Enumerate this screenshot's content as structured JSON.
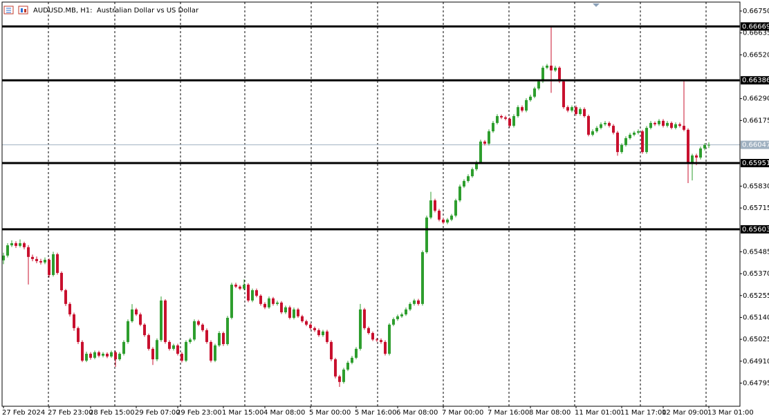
{
  "chart_data": {
    "type": "candlestick",
    "title": "AUDUSD.MB, H1:  Australian Dollar vs US Dollar",
    "up_color": "#2e9e2e",
    "down_color": "#c8102e",
    "ylim": [
      0.64666,
      0.66808
    ],
    "yticks": [
      {
        "value": 0.6675,
        "label": "0.66750"
      },
      {
        "value": 0.66635,
        "label": "0.66635"
      },
      {
        "value": 0.6652,
        "label": "0.66520"
      },
      {
        "value": 0.6629,
        "label": "0.66290"
      },
      {
        "value": 0.66175,
        "label": "0.66175"
      },
      {
        "value": 0.6583,
        "label": "0.65830"
      },
      {
        "value": 0.65715,
        "label": "0.65715"
      },
      {
        "value": 0.65485,
        "label": "0.65485"
      },
      {
        "value": 0.6537,
        "label": "0.65370"
      },
      {
        "value": 0.65255,
        "label": "0.65255"
      },
      {
        "value": 0.6514,
        "label": "0.65140"
      },
      {
        "value": 0.65025,
        "label": "0.65025"
      },
      {
        "value": 0.6491,
        "label": "0.64910"
      },
      {
        "value": 0.64795,
        "label": "0.64795"
      }
    ],
    "levels": [
      {
        "value": 0.66669,
        "label": "0.66669"
      },
      {
        "value": 0.66386,
        "label": "0.66386"
      },
      {
        "value": 0.65951,
        "label": "0.65951"
      },
      {
        "value": 0.65603,
        "label": "0.65603"
      }
    ],
    "current_price": {
      "value": 0.66047,
      "label": "0.66047"
    },
    "categories": [
      "27 Feb 2024",
      null,
      null,
      null,
      null,
      null,
      null,
      null,
      null,
      null,
      null,
      "27 Feb 23:00",
      null,
      null,
      null,
      null,
      null,
      null,
      null,
      null,
      null,
      "28 Feb 15:00",
      null,
      null,
      null,
      null,
      null,
      null,
      null,
      null,
      null,
      null,
      "29 Feb 07:00",
      null,
      null,
      null,
      null,
      null,
      null,
      null,
      null,
      null,
      "29 Feb 23:00",
      null,
      null,
      null,
      null,
      null,
      null,
      null,
      null,
      null,
      null,
      "1 Mar 15:00",
      null,
      null,
      null,
      null,
      null,
      null,
      null,
      null,
      null,
      "4 Mar 08:00",
      null,
      null,
      null,
      null,
      null,
      null,
      null,
      null,
      null,
      null,
      "5 Mar 00:00",
      null,
      null,
      null,
      null,
      null,
      null,
      null,
      null,
      null,
      null,
      "5 Mar 16:00",
      null,
      null,
      null,
      null,
      null,
      null,
      null,
      null,
      null,
      "6 Mar 08:00",
      null,
      null,
      null,
      null,
      null,
      null,
      null,
      null,
      null,
      null,
      "7 Mar 00:00",
      null,
      null,
      null,
      null,
      null,
      null,
      null,
      null,
      null,
      null,
      "7 Mar 16:00",
      null,
      null,
      null,
      null,
      null,
      null,
      null,
      null,
      null,
      "8 Mar 08:00",
      null,
      null,
      null,
      null,
      null,
      null,
      null,
      null,
      null,
      null,
      "11 Mar 01:00",
      null,
      null,
      null,
      null,
      null,
      null,
      null,
      null,
      null,
      null,
      "11 Mar 17:00",
      null,
      null,
      null,
      null,
      null,
      null,
      null,
      null,
      null,
      "12 Mar 09:00",
      null,
      null,
      null,
      null,
      null,
      null,
      null,
      null,
      null,
      null,
      "13 Mar 01:00"
    ],
    "ohlc": [
      [
        0.6544,
        0.6548,
        0.6542,
        0.65465
      ],
      [
        0.65465,
        0.6553,
        0.65455,
        0.65519
      ],
      [
        0.65519,
        0.65545,
        0.6551,
        0.6553
      ],
      [
        0.6553,
        0.6554,
        0.65505,
        0.65516
      ],
      [
        0.65516,
        0.6555,
        0.65508,
        0.6553
      ],
      [
        0.6553,
        0.65538,
        0.65498,
        0.65509
      ],
      [
        0.65509,
        0.6552,
        0.65313,
        0.65458
      ],
      [
        0.65458,
        0.6547,
        0.65435,
        0.65447
      ],
      [
        0.65447,
        0.6546,
        0.65425,
        0.65436
      ],
      [
        0.65436,
        0.65448,
        0.65418,
        0.65429
      ],
      [
        0.65429,
        0.65455,
        0.6542,
        0.65443
      ],
      [
        0.65443,
        0.6545,
        0.6535,
        0.65363
      ],
      [
        0.65363,
        0.65485,
        0.65355,
        0.65472
      ],
      [
        0.65472,
        0.6548,
        0.65365,
        0.65374
      ],
      [
        0.65374,
        0.65382,
        0.65275,
        0.65283
      ],
      [
        0.65283,
        0.6529,
        0.652,
        0.65211
      ],
      [
        0.65211,
        0.6522,
        0.65145,
        0.65156
      ],
      [
        0.65156,
        0.65165,
        0.6507,
        0.65084
      ],
      [
        0.65084,
        0.65092,
        0.65,
        0.65011
      ],
      [
        0.65011,
        0.6502,
        0.64905,
        0.64913
      ],
      [
        0.64913,
        0.6496,
        0.64905,
        0.64949
      ],
      [
        0.64949,
        0.64958,
        0.64918,
        0.64928
      ],
      [
        0.64928,
        0.64966,
        0.6492,
        0.64957
      ],
      [
        0.64957,
        0.64965,
        0.6493,
        0.64939
      ],
      [
        0.64939,
        0.64958,
        0.6493,
        0.64949
      ],
      [
        0.64949,
        0.64957,
        0.64926,
        0.64935
      ],
      [
        0.64935,
        0.64966,
        0.64928,
        0.64957
      ],
      [
        0.64957,
        0.64965,
        0.6488,
        0.6492
      ],
      [
        0.6492,
        0.64958,
        0.64912,
        0.64949
      ],
      [
        0.64949,
        0.6502,
        0.6494,
        0.65011
      ],
      [
        0.65011,
        0.6513,
        0.65002,
        0.6512
      ],
      [
        0.6512,
        0.6521,
        0.65112,
        0.65182
      ],
      [
        0.65182,
        0.6519,
        0.65148,
        0.65156
      ],
      [
        0.65156,
        0.65165,
        0.65094,
        0.65102
      ],
      [
        0.65102,
        0.6511,
        0.65038,
        0.65047
      ],
      [
        0.65047,
        0.65055,
        0.64966,
        0.64975
      ],
      [
        0.64975,
        0.64984,
        0.6489,
        0.6492
      ],
      [
        0.6492,
        0.6503,
        0.6491,
        0.65021
      ],
      [
        0.65021,
        0.6525,
        0.65012,
        0.65229
      ],
      [
        0.65229,
        0.65236,
        0.65002,
        0.65011
      ],
      [
        0.65011,
        0.6502,
        0.64966,
        0.64975
      ],
      [
        0.64975,
        0.65002,
        0.64966,
        0.64993
      ],
      [
        0.64993,
        0.65002,
        0.6494,
        0.64949
      ],
      [
        0.64949,
        0.64958,
        0.64904,
        0.64913
      ],
      [
        0.64913,
        0.6502,
        0.64905,
        0.65011
      ],
      [
        0.65011,
        0.65033,
        0.65002,
        0.65024
      ],
      [
        0.65024,
        0.6513,
        0.65016,
        0.6512
      ],
      [
        0.6512,
        0.65128,
        0.65094,
        0.65102
      ],
      [
        0.65102,
        0.6511,
        0.65064,
        0.65073
      ],
      [
        0.65073,
        0.65082,
        0.65002,
        0.65011
      ],
      [
        0.65011,
        0.6502,
        0.64904,
        0.64913
      ],
      [
        0.64913,
        0.65002,
        0.64905,
        0.64993
      ],
      [
        0.64993,
        0.65068,
        0.64985,
        0.65058
      ],
      [
        0.65058,
        0.65066,
        0.6499,
        0.65
      ],
      [
        0.65,
        0.65148,
        0.64992,
        0.65138
      ],
      [
        0.65138,
        0.65322,
        0.6513,
        0.65312
      ],
      [
        0.65312,
        0.65322,
        0.65294,
        0.65302
      ],
      [
        0.65302,
        0.6531,
        0.65283,
        0.65291
      ],
      [
        0.65291,
        0.6534,
        0.65283,
        0.65312
      ],
      [
        0.65312,
        0.6532,
        0.6522,
        0.65229
      ],
      [
        0.65229,
        0.65292,
        0.6522,
        0.65283
      ],
      [
        0.65283,
        0.65292,
        0.65246,
        0.65254
      ],
      [
        0.65254,
        0.65262,
        0.65202,
        0.65211
      ],
      [
        0.65211,
        0.6522,
        0.65184,
        0.65193
      ],
      [
        0.65193,
        0.6525,
        0.65185,
        0.6524
      ],
      [
        0.6524,
        0.65248,
        0.65202,
        0.65211
      ],
      [
        0.65211,
        0.65228,
        0.65202,
        0.65218
      ],
      [
        0.65218,
        0.65226,
        0.65158,
        0.65167
      ],
      [
        0.65167,
        0.65202,
        0.65158,
        0.65193
      ],
      [
        0.65193,
        0.65202,
        0.6513,
        0.65138
      ],
      [
        0.65138,
        0.65192,
        0.6513,
        0.65182
      ],
      [
        0.65182,
        0.6519,
        0.65138,
        0.65146
      ],
      [
        0.65146,
        0.65154,
        0.65112,
        0.6512
      ],
      [
        0.6512,
        0.65128,
        0.65094,
        0.65102
      ],
      [
        0.65102,
        0.6511,
        0.65076,
        0.65084
      ],
      [
        0.65084,
        0.65092,
        0.65064,
        0.65073
      ],
      [
        0.65073,
        0.65082,
        0.65038,
        0.65047
      ],
      [
        0.65047,
        0.65075,
        0.65038,
        0.65066
      ],
      [
        0.65066,
        0.65075,
        0.65002,
        0.65011
      ],
      [
        0.65011,
        0.6502,
        0.6491,
        0.6492
      ],
      [
        0.6492,
        0.64928,
        0.6482,
        0.6483
      ],
      [
        0.6483,
        0.64838,
        0.64775,
        0.64801
      ],
      [
        0.64801,
        0.64875,
        0.64792,
        0.64866
      ],
      [
        0.64866,
        0.64912,
        0.64858,
        0.64902
      ],
      [
        0.64902,
        0.64938,
        0.64894,
        0.64928
      ],
      [
        0.64928,
        0.64984,
        0.6492,
        0.64975
      ],
      [
        0.64975,
        0.65211,
        0.64966,
        0.65182
      ],
      [
        0.65182,
        0.6519,
        0.65075,
        0.65084
      ],
      [
        0.65084,
        0.65092,
        0.6505,
        0.65058
      ],
      [
        0.65058,
        0.65066,
        0.65016,
        0.65024
      ],
      [
        0.65024,
        0.65032,
        0.65012,
        0.65021
      ],
      [
        0.65021,
        0.6503,
        0.65002,
        0.65011
      ],
      [
        0.65011,
        0.6502,
        0.6494,
        0.64949
      ],
      [
        0.64949,
        0.6511,
        0.6494,
        0.65102
      ],
      [
        0.65102,
        0.6514,
        0.65094,
        0.65131
      ],
      [
        0.65131,
        0.65155,
        0.65122,
        0.65146
      ],
      [
        0.65146,
        0.65165,
        0.65138,
        0.65156
      ],
      [
        0.65156,
        0.65192,
        0.65148,
        0.65182
      ],
      [
        0.65182,
        0.6522,
        0.65174,
        0.65211
      ],
      [
        0.65211,
        0.65238,
        0.65202,
        0.65229
      ],
      [
        0.65229,
        0.65238,
        0.65202,
        0.65211
      ],
      [
        0.65211,
        0.65492,
        0.65202,
        0.65483
      ],
      [
        0.65483,
        0.65675,
        0.65475,
        0.65665
      ],
      [
        0.65665,
        0.658,
        0.65656,
        0.65755
      ],
      [
        0.65755,
        0.65764,
        0.65692,
        0.65701
      ],
      [
        0.65701,
        0.6571,
        0.65645,
        0.65654
      ],
      [
        0.65654,
        0.65662,
        0.6563,
        0.65639
      ],
      [
        0.65639,
        0.65662,
        0.6563,
        0.65654
      ],
      [
        0.65654,
        0.65684,
        0.65646,
        0.65675
      ],
      [
        0.65675,
        0.65764,
        0.65666,
        0.65755
      ],
      [
        0.65755,
        0.65838,
        0.65746,
        0.65828
      ],
      [
        0.65828,
        0.65866,
        0.6582,
        0.65857
      ],
      [
        0.65857,
        0.65892,
        0.65848,
        0.65882
      ],
      [
        0.65882,
        0.65928,
        0.65874,
        0.65919
      ],
      [
        0.65919,
        0.65964,
        0.6591,
        0.65955
      ],
      [
        0.65955,
        0.66074,
        0.65946,
        0.66064
      ],
      [
        0.66064,
        0.66072,
        0.66044,
        0.66053
      ],
      [
        0.66053,
        0.66128,
        0.66044,
        0.66118
      ],
      [
        0.66118,
        0.66172,
        0.6611,
        0.66162
      ],
      [
        0.66162,
        0.66208,
        0.66154,
        0.66198
      ],
      [
        0.66198,
        0.66206,
        0.66182,
        0.66191
      ],
      [
        0.66191,
        0.662,
        0.66176,
        0.66184
      ],
      [
        0.66184,
        0.66192,
        0.66138,
        0.66147
      ],
      [
        0.66147,
        0.66208,
        0.66138,
        0.66198
      ],
      [
        0.66198,
        0.66255,
        0.6619,
        0.66245
      ],
      [
        0.66245,
        0.66254,
        0.66218,
        0.66227
      ],
      [
        0.66227,
        0.66292,
        0.66218,
        0.66282
      ],
      [
        0.66282,
        0.6631,
        0.66274,
        0.663
      ],
      [
        0.663,
        0.66352,
        0.66292,
        0.66343
      ],
      [
        0.66343,
        0.6639,
        0.66334,
        0.6638
      ],
      [
        0.6638,
        0.66462,
        0.66372,
        0.66452
      ],
      [
        0.66452,
        0.66472,
        0.66444,
        0.66463
      ],
      [
        0.66463,
        0.66669,
        0.6632,
        0.66438
      ],
      [
        0.66438,
        0.66462,
        0.6643,
        0.66452
      ],
      [
        0.66452,
        0.6646,
        0.66372,
        0.6638
      ],
      [
        0.6638,
        0.66388,
        0.66236,
        0.66245
      ],
      [
        0.66245,
        0.66254,
        0.66218,
        0.66227
      ],
      [
        0.66227,
        0.66254,
        0.66218,
        0.66245
      ],
      [
        0.66245,
        0.66254,
        0.662,
        0.66209
      ],
      [
        0.66209,
        0.66244,
        0.662,
        0.66235
      ],
      [
        0.66235,
        0.66244,
        0.6619,
        0.66198
      ],
      [
        0.66198,
        0.66206,
        0.66092,
        0.661
      ],
      [
        0.661,
        0.66128,
        0.66092,
        0.66118
      ],
      [
        0.66118,
        0.66146,
        0.6611,
        0.66136
      ],
      [
        0.66136,
        0.66165,
        0.66128,
        0.66155
      ],
      [
        0.66155,
        0.66172,
        0.66146,
        0.66162
      ],
      [
        0.66162,
        0.6617,
        0.66138,
        0.66147
      ],
      [
        0.66147,
        0.66156,
        0.66102,
        0.66111
      ],
      [
        0.66111,
        0.6612,
        0.6599,
        0.66009
      ],
      [
        0.66009,
        0.66055,
        0.66,
        0.66046
      ],
      [
        0.66046,
        0.66092,
        0.66038,
        0.66082
      ],
      [
        0.66082,
        0.6611,
        0.66074,
        0.661
      ],
      [
        0.661,
        0.6612,
        0.66092,
        0.66111
      ],
      [
        0.66111,
        0.66128,
        0.66102,
        0.66118
      ],
      [
        0.66118,
        0.66126,
        0.66,
        0.66009
      ],
      [
        0.66009,
        0.66146,
        0.66,
        0.66136
      ],
      [
        0.66136,
        0.66172,
        0.66128,
        0.66162
      ],
      [
        0.66162,
        0.6617,
        0.66146,
        0.66155
      ],
      [
        0.66155,
        0.66182,
        0.66146,
        0.66173
      ],
      [
        0.66173,
        0.66182,
        0.66138,
        0.66147
      ],
      [
        0.66147,
        0.66172,
        0.66138,
        0.66162
      ],
      [
        0.66162,
        0.6617,
        0.66128,
        0.66136
      ],
      [
        0.66136,
        0.66165,
        0.66128,
        0.66155
      ],
      [
        0.66155,
        0.66164,
        0.66138,
        0.66147
      ],
      [
        0.66147,
        0.66386,
        0.66118,
        0.66126
      ],
      [
        0.66126,
        0.66134,
        0.65846,
        0.65955
      ],
      [
        0.65955,
        0.66,
        0.6586,
        0.65991
      ],
      [
        0.65991,
        0.66,
        0.6594,
        0.6598
      ],
      [
        0.6598,
        0.66038,
        0.6597,
        0.66028
      ],
      [
        0.66028,
        0.66056,
        0.66018,
        0.66046
      ],
      [
        0.66046,
        0.6606,
        0.6603,
        0.66047
      ]
    ]
  }
}
